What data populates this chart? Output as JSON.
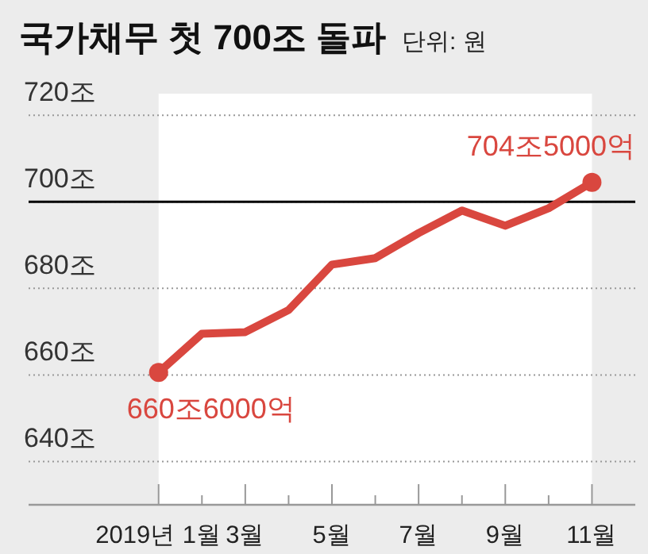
{
  "chart_data": {
    "type": "line",
    "title": "국가채무 첫 700조 돌파",
    "subtitle": "단위: 원",
    "x": [
      1,
      2,
      3,
      4,
      5,
      6,
      7,
      8,
      9,
      10,
      11
    ],
    "series": [
      {
        "color": "#d9473f",
        "values": [
          660.6,
          669.5,
          669.9,
          675,
          685.5,
          687,
          692.8,
          698,
          694.5,
          698.5,
          704.5
        ]
      }
    ],
    "xlim": [
      -2,
      12
    ],
    "xticks": [
      {
        "value": 1,
        "label": "2019년 1월"
      },
      {
        "value": 2,
        "label": null
      },
      {
        "value": 3,
        "label": "3월"
      },
      {
        "value": 4,
        "label": null
      },
      {
        "value": 5,
        "label": "5월"
      },
      {
        "value": 6,
        "label": null
      },
      {
        "value": 7,
        "label": "7월"
      },
      {
        "value": 8,
        "label": null
      },
      {
        "value": 9,
        "label": "9월"
      },
      {
        "value": 10,
        "label": null
      },
      {
        "value": 11,
        "label": "11월"
      }
    ],
    "ylim": [
      630,
      725
    ],
    "yticks": [
      {
        "value": 640,
        "label": "640조"
      },
      {
        "value": 660,
        "label": "660조"
      },
      {
        "value": 680,
        "label": "680조"
      },
      {
        "value": 700,
        "label": "700조"
      },
      {
        "value": 720,
        "label": "720조"
      }
    ],
    "grid": "y",
    "line_style": "solid",
    "ref_lines": [
      {
        "axis": "y",
        "value": 700,
        "label": null,
        "color": "#000000"
      }
    ],
    "bands": [
      {
        "axis": "x",
        "from": 1,
        "to": 11,
        "label": null,
        "color": "#ffffff"
      }
    ],
    "annotations": [
      {
        "text": "704조5000억",
        "x": 11,
        "y": 704.5
      },
      {
        "text": "660조6000억",
        "x": 1,
        "y": 660.6
      }
    ]
  }
}
